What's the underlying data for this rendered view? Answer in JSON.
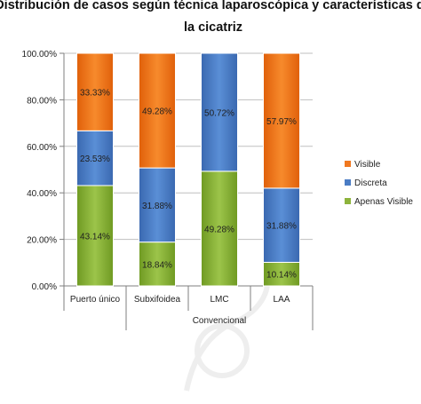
{
  "chart_data": {
    "type": "bar",
    "stacked": true,
    "title_lines": [
      "Distribución de casos según técnica laparoscópica y características de",
      "la cicatriz"
    ],
    "categories": [
      "Puerto único",
      "Subxifoidea",
      "LMC",
      "LAA"
    ],
    "category_group": {
      "label": "Convencional",
      "categories": [
        "Subxifoidea",
        "LMC",
        "LAA"
      ]
    },
    "y_ticks": [
      "0.00%",
      "20.00%",
      "40.00%",
      "60.00%",
      "80.00%",
      "100.00%"
    ],
    "ylim": [
      0,
      100
    ],
    "grid": true,
    "legend_position": "right",
    "series": [
      {
        "name": "Apenas Visible",
        "color": "#8db33c",
        "values": [
          43.14,
          18.84,
          49.28,
          10.14
        ],
        "labels": [
          "43.14%",
          "18.84%",
          "49.28%",
          "10.14%"
        ]
      },
      {
        "name": "Discreta",
        "color": "#4a7cc4",
        "values": [
          23.53,
          31.88,
          50.72,
          31.88
        ],
        "labels": [
          "23.53%",
          "31.88%",
          "50.72%",
          "31.88%"
        ]
      },
      {
        "name": "Visible",
        "color": "#f07820",
        "values": [
          33.33,
          49.28,
          0,
          57.97
        ],
        "labels": [
          "33.33%",
          "49.28%",
          "",
          "57.97%"
        ]
      }
    ],
    "legend_order": [
      "Visible",
      "Discreta",
      "Apenas Visible"
    ]
  }
}
